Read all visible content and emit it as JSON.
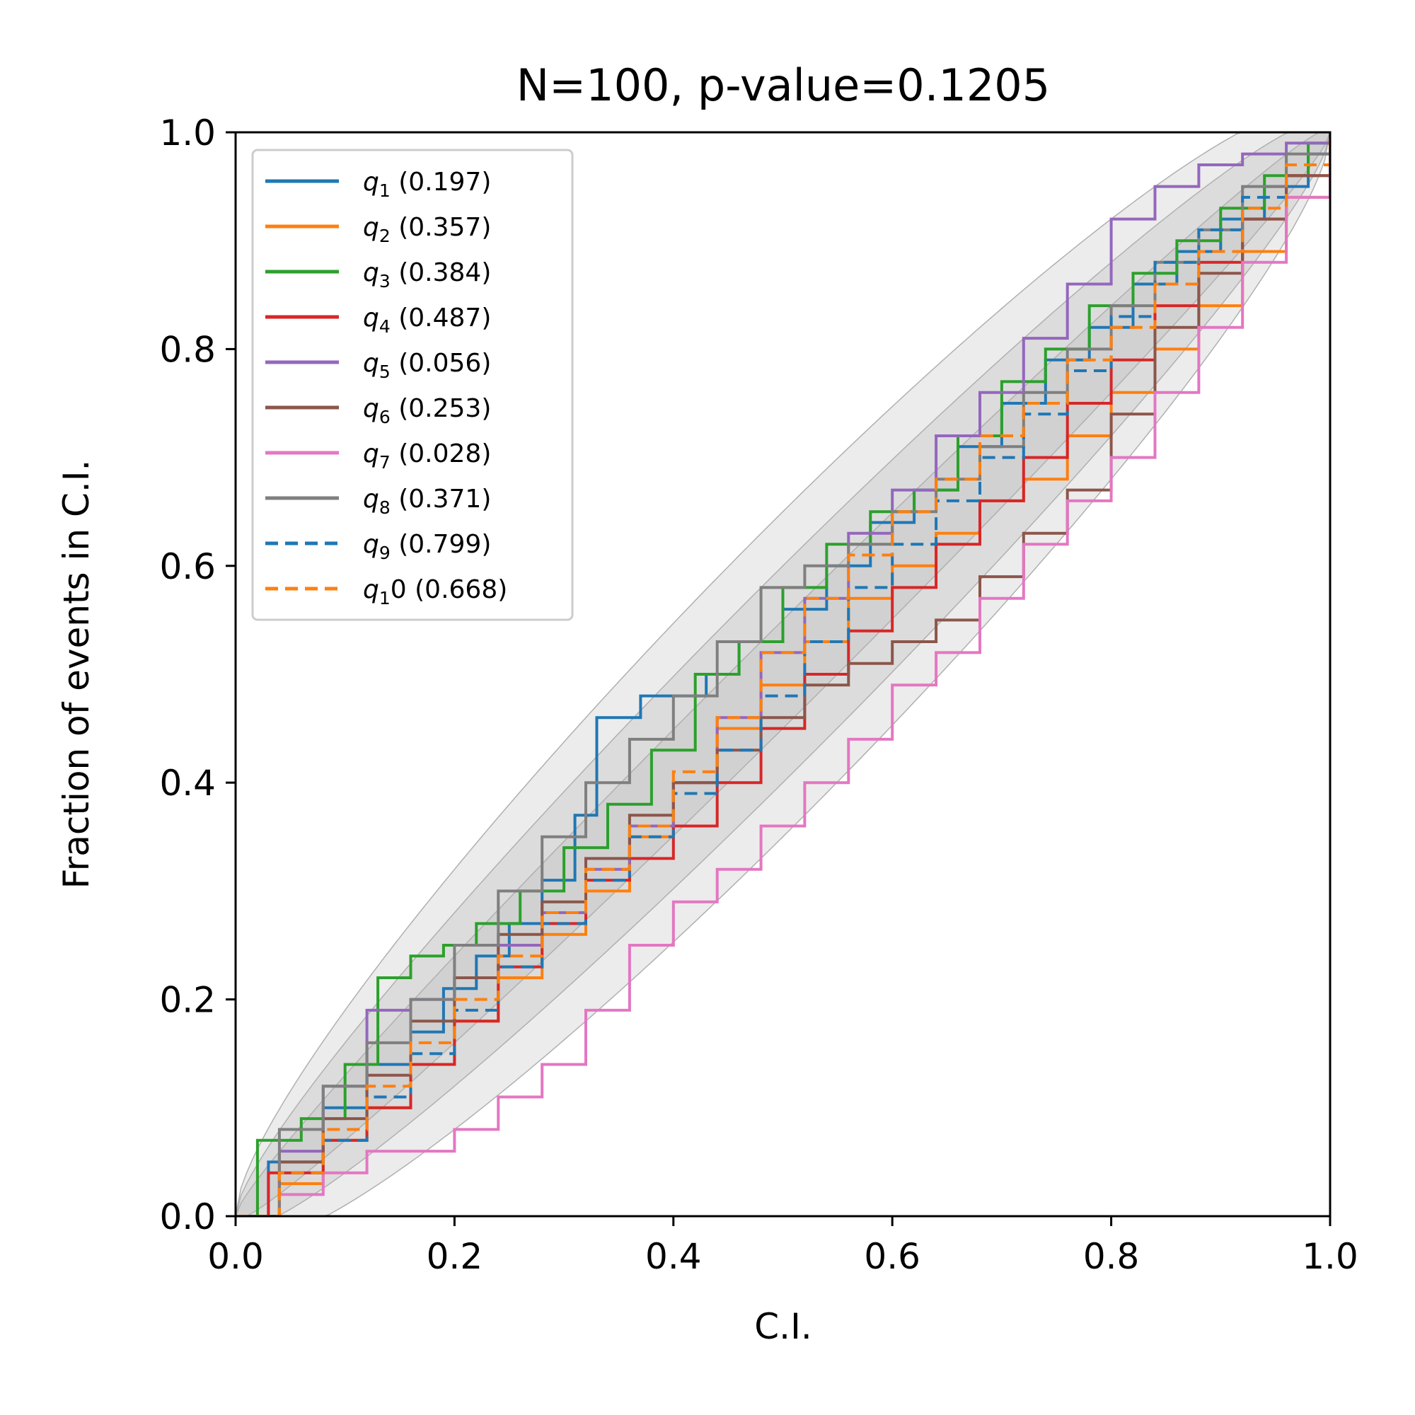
{
  "chart_data": {
    "type": "line",
    "title": "N=100, p-value=0.1205",
    "xlabel": "C.I.",
    "ylabel": "Fraction of events in C.I.",
    "xlim": [
      0,
      1
    ],
    "ylim": [
      0,
      1
    ],
    "xticks": [
      "0.0",
      "0.2",
      "0.4",
      "0.6",
      "0.8",
      "1.0"
    ],
    "yticks": [
      "0.0",
      "0.2",
      "0.4",
      "0.6",
      "0.8",
      "1.0"
    ],
    "grid": false,
    "legend_position": "upper-left",
    "confidence_bands": [
      "1-sigma",
      "2-sigma",
      "3-sigma"
    ],
    "band_color": "#c0c0c0",
    "series": [
      {
        "name": "q",
        "sub": "1",
        "pval": "(0.197)",
        "color": "#1f77b4",
        "dashed": false,
        "x": [
          0,
          0.03,
          0.08,
          0.12,
          0.16,
          0.19,
          0.22,
          0.25,
          0.28,
          0.31,
          0.33,
          0.35,
          0.37,
          0.4,
          0.43,
          0.46,
          0.5,
          0.54,
          0.58,
          0.62,
          0.66,
          0.7,
          0.74,
          0.78,
          0.82,
          0.86,
          0.9,
          0.94,
          0.98,
          1
        ],
        "y": [
          0,
          0.05,
          0.1,
          0.14,
          0.17,
          0.21,
          0.24,
          0.27,
          0.31,
          0.37,
          0.46,
          0.46,
          0.48,
          0.48,
          0.5,
          0.53,
          0.56,
          0.6,
          0.64,
          0.67,
          0.71,
          0.75,
          0.79,
          0.82,
          0.86,
          0.89,
          0.92,
          0.95,
          0.98,
          1
        ]
      },
      {
        "name": "q",
        "sub": "2",
        "pval": "(0.357)",
        "color": "#ff7f0e",
        "dashed": false,
        "x": [
          0,
          0.04,
          0.08,
          0.12,
          0.16,
          0.2,
          0.24,
          0.28,
          0.32,
          0.36,
          0.4,
          0.44,
          0.48,
          0.52,
          0.56,
          0.6,
          0.64,
          0.68,
          0.72,
          0.76,
          0.8,
          0.84,
          0.88,
          0.92,
          0.96,
          1
        ],
        "y": [
          0,
          0.03,
          0.07,
          0.1,
          0.14,
          0.18,
          0.22,
          0.26,
          0.3,
          0.35,
          0.4,
          0.45,
          0.49,
          0.53,
          0.57,
          0.6,
          0.63,
          0.66,
          0.68,
          0.72,
          0.76,
          0.8,
          0.84,
          0.89,
          0.94,
          1
        ]
      },
      {
        "name": "q",
        "sub": "3",
        "pval": "(0.384)",
        "color": "#2ca02c",
        "dashed": false,
        "x": [
          0,
          0.02,
          0.06,
          0.1,
          0.13,
          0.16,
          0.19,
          0.22,
          0.26,
          0.3,
          0.34,
          0.38,
          0.42,
          0.46,
          0.5,
          0.54,
          0.58,
          0.62,
          0.66,
          0.7,
          0.74,
          0.78,
          0.82,
          0.86,
          0.9,
          0.94,
          0.98,
          1
        ],
        "y": [
          0,
          0.07,
          0.09,
          0.14,
          0.22,
          0.24,
          0.25,
          0.27,
          0.3,
          0.34,
          0.38,
          0.43,
          0.5,
          0.53,
          0.58,
          0.62,
          0.65,
          0.67,
          0.72,
          0.77,
          0.8,
          0.84,
          0.87,
          0.9,
          0.93,
          0.96,
          0.99,
          1
        ]
      },
      {
        "name": "q",
        "sub": "4",
        "pval": "(0.487)",
        "color": "#d62728",
        "dashed": false,
        "x": [
          0,
          0.03,
          0.08,
          0.12,
          0.16,
          0.2,
          0.24,
          0.28,
          0.32,
          0.36,
          0.4,
          0.44,
          0.48,
          0.52,
          0.56,
          0.6,
          0.64,
          0.68,
          0.72,
          0.76,
          0.8,
          0.84,
          0.88,
          0.92,
          0.96,
          1
        ],
        "y": [
          0,
          0.04,
          0.07,
          0.1,
          0.14,
          0.18,
          0.23,
          0.27,
          0.31,
          0.33,
          0.36,
          0.4,
          0.45,
          0.5,
          0.54,
          0.58,
          0.62,
          0.66,
          0.7,
          0.75,
          0.79,
          0.84,
          0.88,
          0.92,
          0.96,
          1
        ]
      },
      {
        "name": "q",
        "sub": "5",
        "pval": "(0.056)",
        "color": "#9467bd",
        "dashed": false,
        "x": [
          0,
          0.04,
          0.08,
          0.12,
          0.16,
          0.2,
          0.24,
          0.28,
          0.32,
          0.36,
          0.4,
          0.44,
          0.48,
          0.52,
          0.56,
          0.6,
          0.64,
          0.68,
          0.72,
          0.76,
          0.8,
          0.84,
          0.88,
          0.92,
          0.96,
          1
        ],
        "y": [
          0,
          0.06,
          0.12,
          0.19,
          0.2,
          0.22,
          0.25,
          0.28,
          0.32,
          0.36,
          0.4,
          0.46,
          0.52,
          0.57,
          0.63,
          0.67,
          0.72,
          0.76,
          0.81,
          0.86,
          0.92,
          0.95,
          0.97,
          0.98,
          0.99,
          1
        ]
      },
      {
        "name": "q",
        "sub": "6",
        "pval": "(0.253)",
        "color": "#8c564b",
        "dashed": false,
        "x": [
          0,
          0.04,
          0.08,
          0.12,
          0.16,
          0.2,
          0.24,
          0.28,
          0.32,
          0.36,
          0.4,
          0.44,
          0.48,
          0.52,
          0.56,
          0.6,
          0.64,
          0.68,
          0.72,
          0.76,
          0.8,
          0.84,
          0.88,
          0.92,
          0.96,
          1
        ],
        "y": [
          0,
          0.05,
          0.09,
          0.13,
          0.18,
          0.22,
          0.26,
          0.29,
          0.33,
          0.37,
          0.4,
          0.43,
          0.46,
          0.49,
          0.51,
          0.53,
          0.55,
          0.59,
          0.63,
          0.67,
          0.74,
          0.82,
          0.87,
          0.92,
          0.96,
          1
        ]
      },
      {
        "name": "q",
        "sub": "7",
        "pval": "(0.028)",
        "color": "#e377c2",
        "dashed": false,
        "x": [
          0,
          0.04,
          0.08,
          0.12,
          0.16,
          0.2,
          0.24,
          0.28,
          0.32,
          0.36,
          0.4,
          0.44,
          0.48,
          0.52,
          0.56,
          0.6,
          0.64,
          0.68,
          0.72,
          0.76,
          0.8,
          0.84,
          0.88,
          0.92,
          0.96,
          1
        ],
        "y": [
          0,
          0.02,
          0.04,
          0.06,
          0.06,
          0.08,
          0.11,
          0.14,
          0.19,
          0.25,
          0.29,
          0.32,
          0.36,
          0.4,
          0.44,
          0.49,
          0.52,
          0.57,
          0.62,
          0.66,
          0.7,
          0.76,
          0.82,
          0.88,
          0.94,
          1
        ]
      },
      {
        "name": "q",
        "sub": "8",
        "pval": "(0.371)",
        "color": "#7f7f7f",
        "dashed": false,
        "x": [
          0,
          0.04,
          0.08,
          0.12,
          0.16,
          0.2,
          0.24,
          0.28,
          0.32,
          0.36,
          0.4,
          0.44,
          0.48,
          0.52,
          0.56,
          0.6,
          0.64,
          0.68,
          0.72,
          0.76,
          0.8,
          0.84,
          0.88,
          0.92,
          0.96,
          1
        ],
        "y": [
          0,
          0.08,
          0.12,
          0.16,
          0.2,
          0.25,
          0.3,
          0.35,
          0.4,
          0.44,
          0.48,
          0.53,
          0.58,
          0.6,
          0.62,
          0.65,
          0.68,
          0.71,
          0.76,
          0.8,
          0.84,
          0.88,
          0.91,
          0.95,
          0.98,
          1
        ]
      },
      {
        "name": "q",
        "sub": "9",
        "pval": "(0.799)",
        "color": "#1f77b4",
        "dashed": true,
        "x": [
          0,
          0.04,
          0.08,
          0.12,
          0.16,
          0.2,
          0.24,
          0.28,
          0.32,
          0.36,
          0.4,
          0.44,
          0.48,
          0.52,
          0.56,
          0.6,
          0.64,
          0.68,
          0.72,
          0.76,
          0.8,
          0.84,
          0.88,
          0.92,
          0.96,
          1
        ],
        "y": [
          0,
          0.04,
          0.07,
          0.11,
          0.15,
          0.19,
          0.23,
          0.27,
          0.31,
          0.35,
          0.39,
          0.43,
          0.48,
          0.53,
          0.58,
          0.62,
          0.66,
          0.7,
          0.74,
          0.78,
          0.83,
          0.88,
          0.91,
          0.94,
          0.97,
          1
        ]
      },
      {
        "name": "q",
        "sub": "1",
        "sub_suffix": "0",
        "pval": "(0.668)",
        "color": "#ff7f0e",
        "dashed": true,
        "x": [
          0,
          0.04,
          0.08,
          0.12,
          0.16,
          0.2,
          0.24,
          0.28,
          0.32,
          0.36,
          0.4,
          0.44,
          0.48,
          0.52,
          0.56,
          0.6,
          0.64,
          0.68,
          0.72,
          0.76,
          0.8,
          0.84,
          0.88,
          0.92,
          0.96,
          1
        ],
        "y": [
          0,
          0.04,
          0.08,
          0.12,
          0.16,
          0.2,
          0.24,
          0.28,
          0.32,
          0.36,
          0.41,
          0.46,
          0.52,
          0.57,
          0.61,
          0.65,
          0.68,
          0.72,
          0.75,
          0.79,
          0.82,
          0.86,
          0.89,
          0.93,
          0.97,
          1
        ]
      }
    ]
  }
}
